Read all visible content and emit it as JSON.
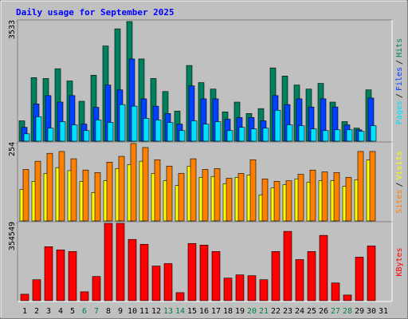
{
  "chart_data": {
    "type": "bar",
    "title": "Daily usage for September 2025",
    "categories": [
      "1",
      "2",
      "3",
      "4",
      "5",
      "6",
      "7",
      "8",
      "9",
      "10",
      "11",
      "12",
      "13",
      "14",
      "15",
      "16",
      "17",
      "18",
      "19",
      "20",
      "21",
      "22",
      "23",
      "24",
      "25",
      "26",
      "27",
      "28",
      "29",
      "30",
      "31"
    ],
    "x_label_colors": [
      "#000000",
      "#000000",
      "#000000",
      "#000000",
      "#000000",
      "#008040",
      "#008040",
      "#000000",
      "#000000",
      "#000000",
      "#000000",
      "#000000",
      "#008040",
      "#008040",
      "#000000",
      "#000000",
      "#000000",
      "#000000",
      "#000000",
      "#008040",
      "#008040",
      "#000000",
      "#000000",
      "#000000",
      "#000000",
      "#000000",
      "#008040",
      "#008040",
      "#000000",
      "#000000",
      "#000000"
    ],
    "legend_separator": "/",
    "panels": [
      {
        "ylim": [
          0,
          3533
        ],
        "yticks": [
          3533
        ],
        "series": [
          {
            "name": "Hits",
            "color": "#00805c",
            "values": [
              601,
              1875,
              1851,
              2139,
              1779,
              1178,
              1947,
              2812,
              3317,
              3533,
              2428,
              1851,
              1466,
              889,
              2235,
              1730,
              1538,
              865,
              1154,
              817,
              961,
              2163,
              1923,
              1658,
              1538,
              1706,
              1154,
              577,
              385,
              1514,
              null
            ]
          },
          {
            "name": "Files",
            "color": "#0040ff",
            "values": [
              409,
              1100,
              1346,
              1154,
              1346,
              505,
              1000,
              1658,
              1514,
              2428,
              1250,
              1033,
              817,
              505,
              1634,
              1250,
              1250,
              649,
              697,
              697,
              601,
              1346,
              1081,
              1250,
              1009,
              1250,
              1009,
              481,
              336,
              1274,
              null
            ]
          },
          {
            "name": "Pages",
            "color": "#00e0ff",
            "values": [
              216,
              721,
              385,
              577,
              481,
              312,
              625,
              553,
              1081,
              1033,
              673,
              625,
              553,
              312,
              601,
              505,
              577,
              312,
              409,
              361,
              385,
              913,
              481,
              457,
              361,
              312,
              336,
              336,
              288,
              457,
              null
            ]
          }
        ]
      },
      {
        "ylim": [
          0,
          254
        ],
        "yticks": [
          254
        ],
        "series": [
          {
            "name": "Visits",
            "color": "#ffff00",
            "values": [
              103,
              130,
              156,
              175,
              165,
              130,
              93,
              132,
              172,
              185,
              196,
              156,
              132,
              116,
              180,
              143,
              146,
              122,
              143,
              151,
              85,
              108,
              119,
              138,
              127,
              132,
              132,
              114,
              135,
              200,
              null
            ]
          },
          {
            "name": "Sites",
            "color": "#ff8000",
            "values": [
              169,
              196,
              222,
              228,
              204,
              167,
              159,
              193,
              212,
              254,
              241,
              201,
              180,
              156,
              204,
              169,
              172,
              140,
              156,
              201,
              138,
              130,
              132,
              153,
              167,
              161,
              159,
              143,
              228,
              228,
              null
            ]
          }
        ]
      },
      {
        "ylim": [
          0,
          354549
        ],
        "yticks": [
          354549
        ],
        "series": [
          {
            "name": "KBytes",
            "color": "#ff0000",
            "values": [
              29546,
              96024,
              247446,
              232673,
              225286,
              40625,
              110797,
              354549,
              354549,
              280685,
              258525,
              158808,
              169888,
              36932,
              262218,
              254832,
              225286,
              103411,
              118183,
              114490,
              96024,
              225286,
              317616,
              188354,
              225286,
              299150,
              81250,
              25852,
              199433,
              251138,
              null
            ]
          }
        ]
      }
    ]
  }
}
